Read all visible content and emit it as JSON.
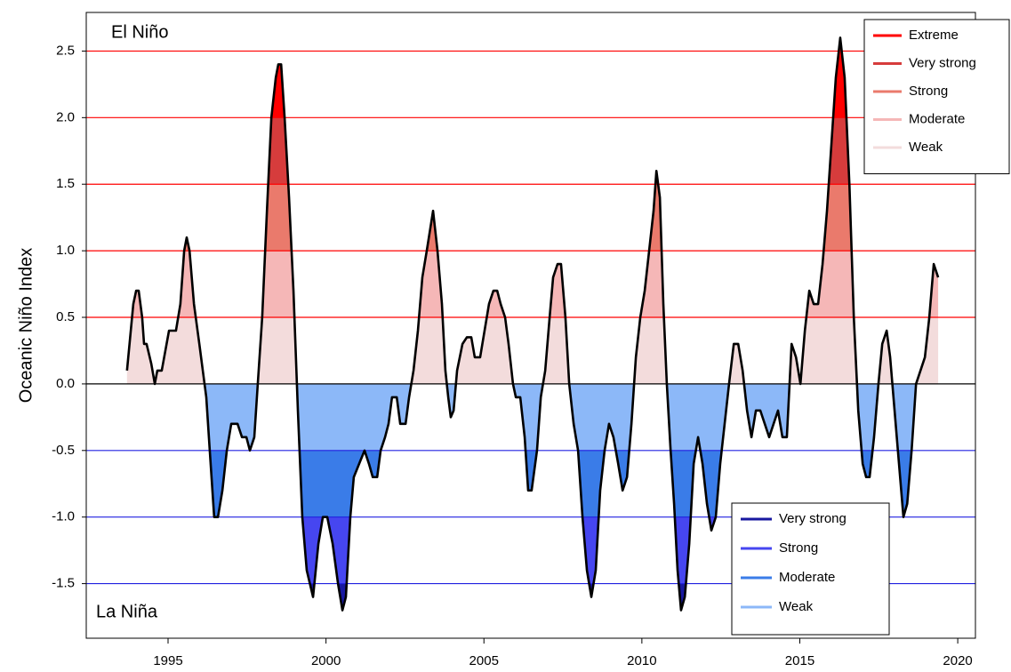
{
  "chart_data": {
    "type": "area",
    "y_label": "Oceanic Niño Index",
    "annotations": [
      "El Niño",
      "La Niña"
    ],
    "line_color": "#000000",
    "xlim": [
      1992.41,
      2020.56
    ],
    "ylim": [
      -1.91,
      2.79
    ],
    "xticks": [
      1995,
      2000,
      2005,
      2010,
      2015,
      2020
    ],
    "yticks": [
      {
        "value": -1.5,
        "label": "-1.5"
      },
      {
        "value": -1,
        "label": "-1.0"
      },
      -0.5,
      {
        "value": 0,
        "label": "0.0"
      },
      0.5,
      {
        "value": 1,
        "label": "1.0"
      },
      1.5,
      {
        "value": 2,
        "label": "2.0"
      },
      2.5
    ],
    "grid": true,
    "grid_colors": {
      "positive": "#ff0000",
      "negative": "#2020e0",
      "zero": "#000000"
    },
    "el_nino": {
      "legend": "top-right",
      "categories": [
        {
          "name": "Extreme",
          "color": "#ff0000",
          "from": 2
        },
        {
          "name": "Very strong",
          "color": "#d63c3c",
          "from": 1.5
        },
        {
          "name": "Strong",
          "color": "#ea7a6c",
          "from": 1
        },
        {
          "name": "Moderate",
          "color": "#f5b7b7",
          "from": 0.5
        },
        {
          "name": "Weak",
          "color": "#f3dcdc",
          "from": 0
        }
      ]
    },
    "la_nina": {
      "legend": "bottom-right",
      "categories": [
        {
          "name": "Very strong",
          "color": "#1818a0",
          "from": -1.5
        },
        {
          "name": "Strong",
          "color": "#4646f0",
          "from": -1
        },
        {
          "name": "Moderate",
          "color": "#3a7ce8",
          "from": -0.5
        },
        {
          "name": "Weak",
          "color": "#8cb8f8",
          "from": 0
        }
      ]
    },
    "x": [
      1993.7,
      1993.9,
      1993.99,
      1994.07,
      1994.18,
      1994.24,
      1994.32,
      1994.47,
      1994.58,
      1994.66,
      1994.8,
      1995.03,
      1995.25,
      1995.39,
      1995.51,
      1995.59,
      1995.68,
      1995.82,
      1995.99,
      1996.1,
      1996.21,
      1996.32,
      1996.46,
      1996.58,
      1996.72,
      1996.86,
      1997.0,
      1997.2,
      1997.34,
      1997.48,
      1997.59,
      1997.73,
      1997.84,
      1997.98,
      1998.13,
      1998.27,
      1998.41,
      1998.49,
      1998.58,
      1998.69,
      1998.83,
      1998.97,
      1999.11,
      1999.25,
      1999.39,
      1999.59,
      1999.76,
      1999.9,
      2000.04,
      2000.21,
      2000.38,
      2000.52,
      2000.63,
      2000.77,
      2000.88,
      2001.05,
      2001.22,
      2001.36,
      2001.48,
      2001.62,
      2001.73,
      2001.87,
      2001.98,
      2002.09,
      2002.24,
      2002.35,
      2002.52,
      2002.63,
      2002.77,
      2002.91,
      2003.05,
      2003.19,
      2003.39,
      2003.53,
      2003.67,
      2003.78,
      2003.87,
      2003.95,
      2004.04,
      2004.15,
      2004.32,
      2004.46,
      2004.6,
      2004.71,
      2004.88,
      2005.02,
      2005.16,
      2005.3,
      2005.42,
      2005.53,
      2005.67,
      2005.78,
      2005.92,
      2006.01,
      2006.15,
      2006.29,
      2006.4,
      2006.51,
      2006.68,
      2006.8,
      2006.94,
      2007.08,
      2007.19,
      2007.33,
      2007.44,
      2007.58,
      2007.7,
      2007.84,
      2007.98,
      2008.12,
      2008.26,
      2008.4,
      2008.54,
      2008.68,
      2008.82,
      2008.96,
      2009.1,
      2009.25,
      2009.39,
      2009.53,
      2009.67,
      2009.81,
      2009.95,
      2010.09,
      2010.23,
      2010.37,
      2010.46,
      2010.57,
      2010.68,
      2010.79,
      2010.91,
      2011.02,
      2011.13,
      2011.24,
      2011.36,
      2011.5,
      2011.64,
      2011.78,
      2011.92,
      2012.06,
      2012.2,
      2012.34,
      2012.48,
      2012.62,
      2012.76,
      2012.91,
      2013.05,
      2013.19,
      2013.33,
      2013.47,
      2013.61,
      2013.75,
      2013.89,
      2014.03,
      2014.17,
      2014.31,
      2014.45,
      2014.59,
      2014.74,
      2014.88,
      2015.02,
      2015.16,
      2015.3,
      2015.44,
      2015.58,
      2015.72,
      2015.86,
      2016.0,
      2016.14,
      2016.28,
      2016.42,
      2016.57,
      2016.71,
      2016.85,
      2016.99,
      2017.1,
      2017.21,
      2017.35,
      2017.49,
      2017.61,
      2017.75,
      2017.86,
      2018.0,
      2018.14,
      2018.28,
      2018.4,
      2018.54,
      2018.68,
      2018.82,
      2018.96,
      2019.1,
      2019.24,
      2019.38
    ],
    "values": [
      0.1,
      0.6,
      0.7,
      0.7,
      0.5,
      0.3,
      0.3,
      0.15,
      0,
      0.1,
      0.1,
      0.4,
      0.4,
      0.6,
      1.0,
      1.1,
      1.0,
      0.6,
      0.3,
      0.1,
      -0.1,
      -0.5,
      -1.0,
      -1.0,
      -0.8,
      -0.5,
      -0.3,
      -0.3,
      -0.4,
      -0.4,
      -0.5,
      -0.4,
      0,
      0.5,
      1.3,
      2.0,
      2.3,
      2.4,
      2.4,
      2.0,
      1.4,
      0.7,
      -0.2,
      -1.0,
      -1.4,
      -1.6,
      -1.2,
      -1.0,
      -1.0,
      -1.2,
      -1.5,
      -1.7,
      -1.6,
      -1.0,
      -0.7,
      -0.6,
      -0.5,
      -0.6,
      -0.7,
      -0.7,
      -0.5,
      -0.4,
      -0.3,
      -0.1,
      -0.1,
      -0.3,
      -0.3,
      -0.1,
      0.1,
      0.4,
      0.8,
      1.0,
      1.3,
      1.0,
      0.6,
      0.1,
      -0.1,
      -0.25,
      -0.2,
      0.1,
      0.3,
      0.35,
      0.35,
      0.2,
      0.2,
      0.4,
      0.6,
      0.7,
      0.7,
      0.6,
      0.5,
      0.3,
      0,
      -0.1,
      -0.1,
      -0.4,
      -0.8,
      -0.8,
      -0.5,
      -0.1,
      0.1,
      0.5,
      0.8,
      0.9,
      0.9,
      0.5,
      0,
      -0.3,
      -0.5,
      -1.0,
      -1.4,
      -1.6,
      -1.4,
      -0.8,
      -0.5,
      -0.3,
      -0.4,
      -0.6,
      -0.8,
      -0.7,
      -0.3,
      0.2,
      0.5,
      0.7,
      1.0,
      1.3,
      1.6,
      1.4,
      0.6,
      0,
      -0.5,
      -0.9,
      -1.4,
      -1.7,
      -1.6,
      -1.2,
      -0.6,
      -0.4,
      -0.6,
      -0.9,
      -1.1,
      -1.0,
      -0.6,
      -0.3,
      0,
      0.3,
      0.3,
      0.1,
      -0.2,
      -0.4,
      -0.2,
      -0.2,
      -0.3,
      -0.4,
      -0.3,
      -0.2,
      -0.4,
      -0.4,
      0.3,
      0.2,
      0,
      0.4,
      0.7,
      0.6,
      0.6,
      0.9,
      1.3,
      1.8,
      2.3,
      2.6,
      2.3,
      1.5,
      0.5,
      -0.2,
      -0.6,
      -0.7,
      -0.7,
      -0.4,
      0,
      0.3,
      0.4,
      0.2,
      -0.2,
      -0.6,
      -1.0,
      -0.9,
      -0.5,
      0,
      0.1,
      0.2,
      0.5,
      0.9,
      0.8
    ]
  }
}
